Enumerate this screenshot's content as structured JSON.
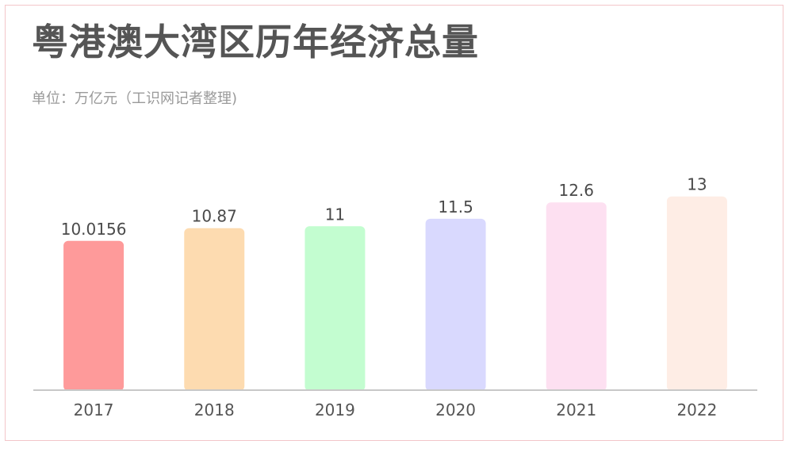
{
  "chart_data": {
    "type": "bar",
    "title": "粤港澳大湾区历年经济总量",
    "subtitle": "单位：万亿元（工识网记者整理)",
    "categories": [
      "2017",
      "2018",
      "2019",
      "2020",
      "2021",
      "2022"
    ],
    "values": [
      10.0156,
      10.87,
      11,
      11.5,
      12.6,
      13
    ],
    "value_labels": [
      "10.0156",
      "10.87",
      "11",
      "11.5",
      "12.6",
      "13"
    ],
    "colors": [
      "#fe9a9a",
      "#fddbb0",
      "#c3fdd0",
      "#d9d9fe",
      "#fde0f1",
      "#feede5"
    ],
    "xlabel": "",
    "ylabel": "",
    "ylim": [
      0,
      18.2
    ],
    "grid": false,
    "legend": "none"
  }
}
